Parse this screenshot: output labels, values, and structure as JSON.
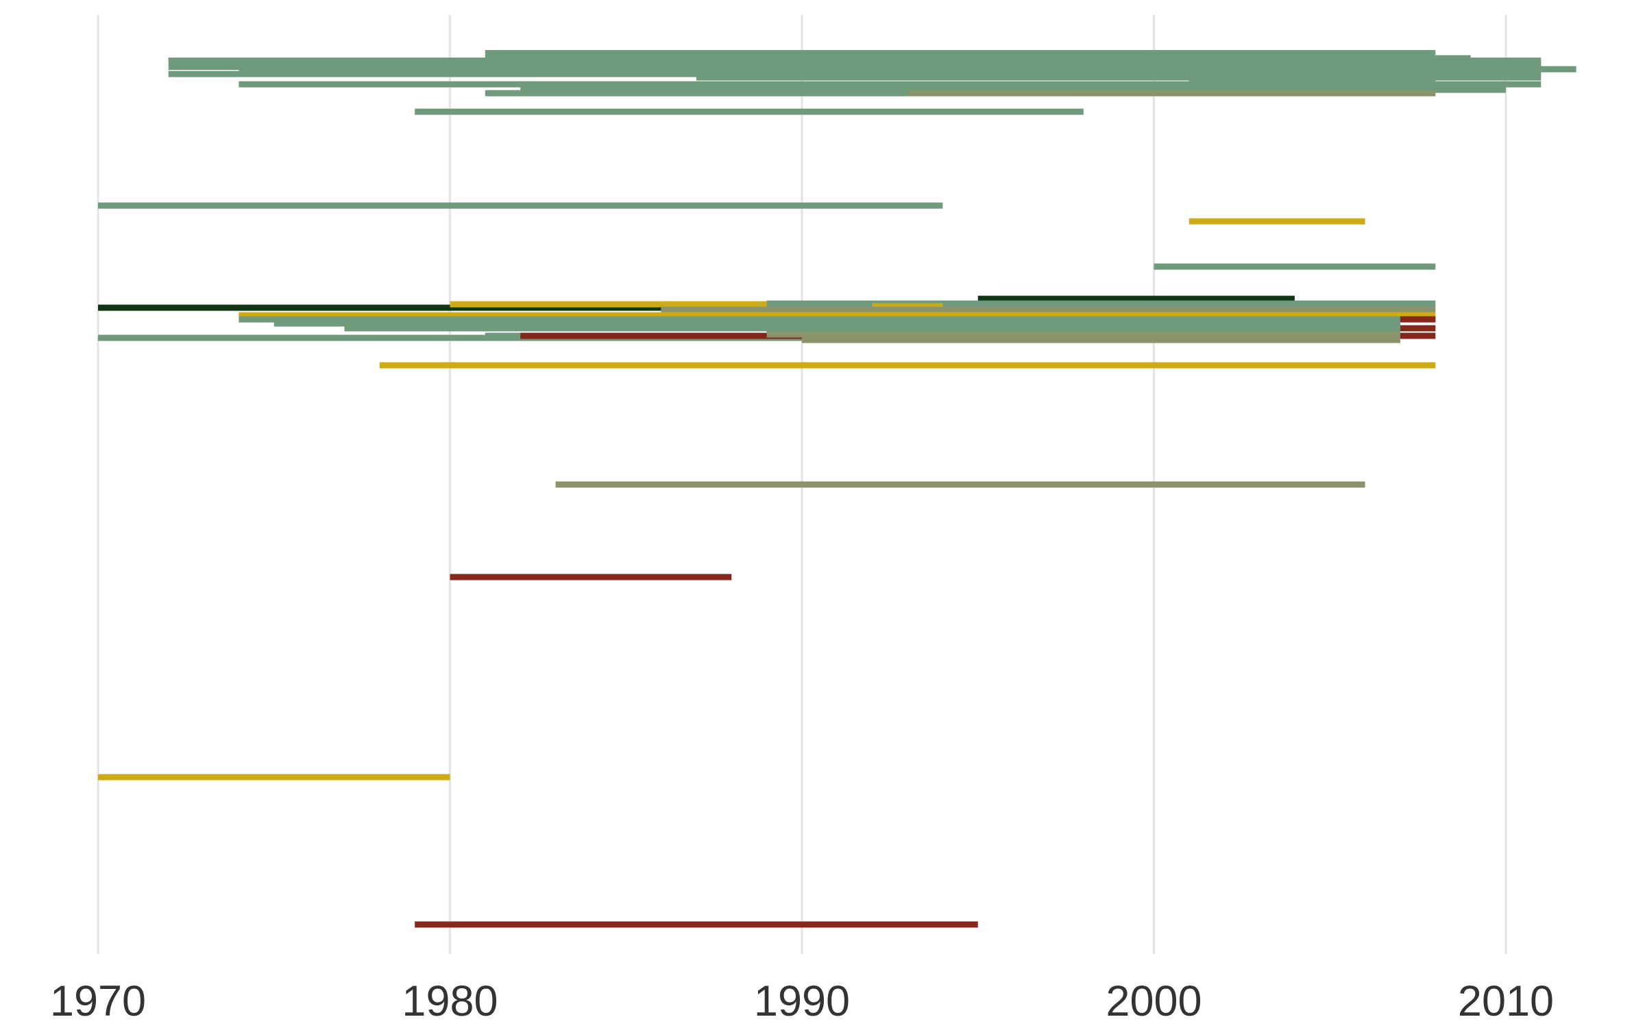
{
  "colors": {
    "sage": "#6f9a7c",
    "olive": "#8b936a",
    "gold": "#cdab16",
    "rust": "#85271a",
    "darkgreen": "#0f3515",
    "grid": "#e3e3e3",
    "text": "#333333"
  },
  "chart_data": {
    "type": "timeline-segments",
    "title": "",
    "xlabel": "",
    "ylabel": "",
    "xlim": [
      1970,
      2013
    ],
    "x_ticks": [
      "1970",
      "1980",
      "1990",
      "2000",
      "2010"
    ],
    "grid": "vertical-major",
    "legend": "none",
    "segments": [
      {
        "start": 1981,
        "end": 2008,
        "y": 82,
        "color": "sage",
        "thick": 2
      },
      {
        "start": 2008,
        "end": 2009,
        "y": 85,
        "color": "sage",
        "thick": 1
      },
      {
        "start": 1972,
        "end": 2011,
        "y": 93,
        "color": "sage",
        "thick": 2
      },
      {
        "start": 1974,
        "end": 2011,
        "y": 98,
        "color": "sage",
        "thick": 2
      },
      {
        "start": 2011,
        "end": 2012,
        "y": 101,
        "color": "sage",
        "thick": 1
      },
      {
        "start": 1972,
        "end": 2011,
        "y": 108,
        "color": "sage",
        "thick": 1
      },
      {
        "start": 1987,
        "end": 2011,
        "y": 113,
        "color": "sage",
        "thick": 1
      },
      {
        "start": 1974,
        "end": 2011,
        "y": 123,
        "color": "sage",
        "thick": 1
      },
      {
        "start": 2001,
        "end": 2008,
        "y": 117,
        "color": "sage",
        "thick": 1
      },
      {
        "start": 1982,
        "end": 2010,
        "y": 131,
        "color": "sage",
        "thick": 1
      },
      {
        "start": 1981,
        "end": 1993,
        "y": 136,
        "color": "sage",
        "thick": 1
      },
      {
        "start": 1993,
        "end": 2008,
        "y": 136,
        "color": "olive",
        "thick": 1
      },
      {
        "start": 1979,
        "end": 1998,
        "y": 163,
        "color": "sage",
        "thick": 1
      },
      {
        "start": 1970,
        "end": 1994,
        "y": 300,
        "color": "sage",
        "thick": 1
      },
      {
        "start": 2001,
        "end": 2006,
        "y": 323,
        "color": "gold",
        "thick": 1
      },
      {
        "start": 2000,
        "end": 2008,
        "y": 389,
        "color": "sage",
        "thick": 1
      },
      {
        "start": 1995,
        "end": 2004,
        "y": 436,
        "color": "darkgreen",
        "thick": 1
      },
      {
        "start": 1970,
        "end": 1986,
        "y": 449,
        "color": "darkgreen",
        "thick": 1
      },
      {
        "start": 1980,
        "end": 1993,
        "y": 444,
        "color": "gold",
        "thick": 1
      },
      {
        "start": 1989,
        "end": 2008,
        "y": 443,
        "color": "sage",
        "thick": 1
      },
      {
        "start": 1992,
        "end": 1994,
        "y": 447,
        "color": "gold",
        "thick": 1
      },
      {
        "start": 1986,
        "end": 2008,
        "y": 452,
        "color": "olive",
        "thick": 1
      },
      {
        "start": 1974,
        "end": 2008,
        "y": 460,
        "color": "gold",
        "thick": 1
      },
      {
        "start": 1974,
        "end": 2008,
        "y": 466,
        "color": "sage",
        "thick": 1
      },
      {
        "start": 2007,
        "end": 2008,
        "y": 466,
        "color": "rust",
        "thick": 1
      },
      {
        "start": 1975,
        "end": 2007,
        "y": 472,
        "color": "sage",
        "thick": 1
      },
      {
        "start": 1977,
        "end": 2007,
        "y": 479,
        "color": "sage",
        "thick": 1
      },
      {
        "start": 2007,
        "end": 2008,
        "y": 479,
        "color": "rust",
        "thick": 1
      },
      {
        "start": 1970,
        "end": 2007,
        "y": 493,
        "color": "sage",
        "thick": 1
      },
      {
        "start": 1981,
        "end": 1982,
        "y": 490,
        "color": "sage",
        "thick": 1
      },
      {
        "start": 1982,
        "end": 2008,
        "y": 490,
        "color": "rust",
        "thick": 1
      },
      {
        "start": 1989,
        "end": 2007,
        "y": 488,
        "color": "olive",
        "thick": 1
      },
      {
        "start": 1990,
        "end": 2007,
        "y": 496,
        "color": "olive",
        "thick": 1
      },
      {
        "start": 1978,
        "end": 2008,
        "y": 533,
        "color": "gold",
        "thick": 1
      },
      {
        "start": 1983,
        "end": 2006,
        "y": 707,
        "color": "olive",
        "thick": 1
      },
      {
        "start": 1980,
        "end": 1988,
        "y": 842,
        "color": "rust",
        "thick": 1
      },
      {
        "start": 1970,
        "end": 1980,
        "y": 1134,
        "color": "gold",
        "thick": 1
      },
      {
        "start": 1979,
        "end": 1995,
        "y": 1349,
        "color": "rust",
        "thick": 1
      }
    ]
  }
}
